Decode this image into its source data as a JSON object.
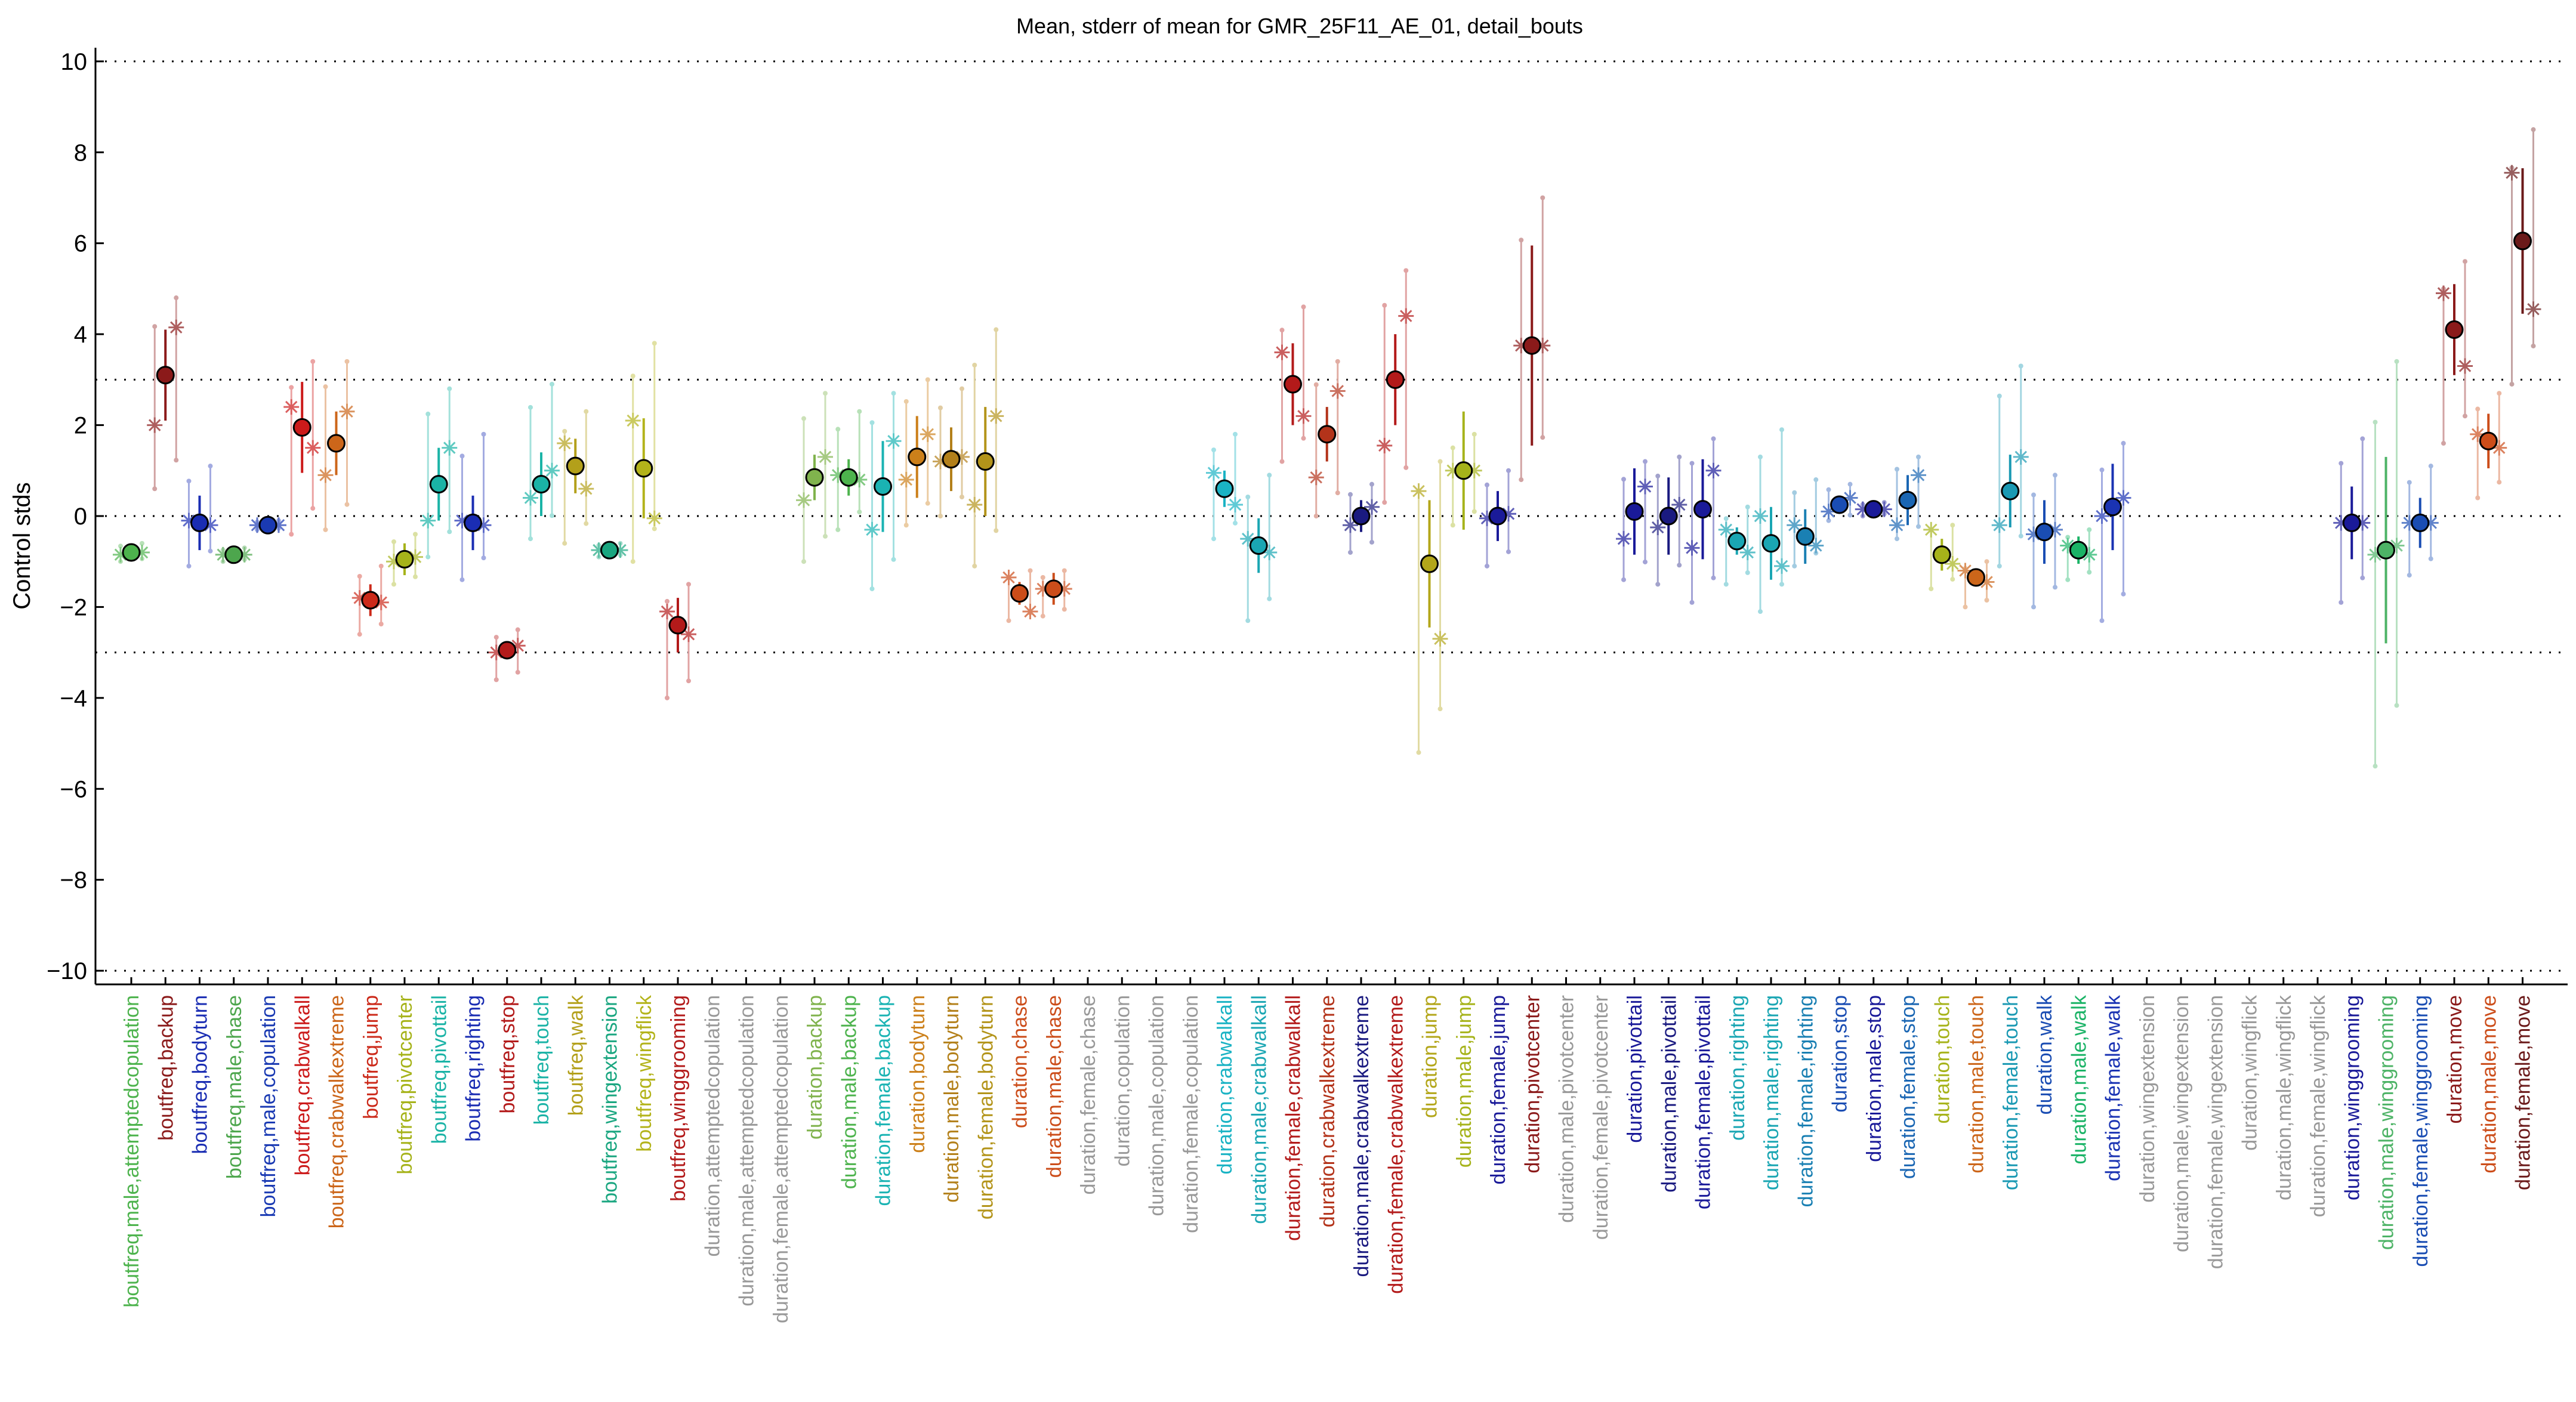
{
  "chart_data": {
    "type": "scatter",
    "title": "Mean, stderr of mean for GMR_25F11_AE_01, detail_bouts",
    "xlabel": "",
    "ylabel": "Control stds",
    "ylim": [
      -10.3,
      10.3
    ],
    "yticks": [
      10,
      8,
      6,
      4,
      2,
      0,
      -2,
      -4,
      -6,
      -8,
      -10
    ],
    "ytick_labels": [
      "10",
      "8",
      "6",
      "4",
      "2",
      "0",
      "−2",
      "−4",
      "−6",
      "−8",
      "−10"
    ],
    "reference_lines": [
      10,
      3,
      0,
      -3,
      -10
    ],
    "grid": false,
    "legend": "none",
    "marker_edge_color": "#000000",
    "categories": [
      {
        "label": "boutfreq,male,attemptedcopulation",
        "color": "#4db34d",
        "mean": -0.8,
        "sem": 0.1,
        "stars": [
          -0.85,
          -0.8
        ],
        "spread": [
          -1.0,
          -0.6
        ]
      },
      {
        "label": "boutfreq,backup",
        "color": "#8b1a1a",
        "mean": 3.1,
        "sem": 1.0,
        "stars": [
          2.0,
          4.15
        ],
        "spread": [
          0.6,
          4.8
        ]
      },
      {
        "label": "boutfreq,bodyturn",
        "color": "#1a2db3",
        "mean": -0.15,
        "sem": 0.6,
        "stars": [
          -0.1,
          -0.2
        ],
        "spread": [
          -1.1,
          1.1
        ]
      },
      {
        "label": "boutfreq,male,chase",
        "color": "#4da64d",
        "mean": -0.85,
        "sem": 0.1,
        "stars": [
          -0.85,
          -0.85
        ],
        "spread": [
          -1.0,
          -0.7
        ]
      },
      {
        "label": "boutfreq,male,copulation",
        "color": "#1a3ab3",
        "mean": -0.2,
        "sem": 0.1,
        "stars": [
          -0.2,
          -0.2
        ],
        "spread": [
          -0.3,
          -0.1
        ]
      },
      {
        "label": "boutfreq,crabwalkall",
        "color": "#cc1a1a",
        "mean": 1.95,
        "sem": 1.0,
        "stars": [
          2.4,
          1.5
        ],
        "spread": [
          -0.4,
          3.4
        ]
      },
      {
        "label": "boutfreq,crabwalkextreme",
        "color": "#cc661a",
        "mean": 1.6,
        "sem": 0.7,
        "stars": [
          0.9,
          2.3
        ],
        "spread": [
          -0.3,
          3.4
        ]
      },
      {
        "label": "boutfreq,jump",
        "color": "#cc2a1a",
        "mean": -1.85,
        "sem": 0.35,
        "stars": [
          -1.8,
          -1.9
        ],
        "spread": [
          -2.6,
          -1.1
        ]
      },
      {
        "label": "boutfreq,pivotcenter",
        "color": "#a6b31a",
        "mean": -0.95,
        "sem": 0.35,
        "stars": [
          -1.0,
          -0.9
        ],
        "spread": [
          -1.5,
          -0.4
        ]
      },
      {
        "label": "boutfreq,pivottail",
        "color": "#1ab3a6",
        "mean": 0.7,
        "sem": 0.8,
        "stars": [
          -0.1,
          1.5
        ],
        "spread": [
          -0.9,
          2.8
        ]
      },
      {
        "label": "boutfreq,righting",
        "color": "#1a2db3",
        "mean": -0.15,
        "sem": 0.6,
        "stars": [
          -0.1,
          -0.2
        ],
        "spread": [
          -1.4,
          1.8
        ]
      },
      {
        "label": "boutfreq,stop",
        "color": "#b31a1a",
        "mean": -2.95,
        "sem": 0.2,
        "stars": [
          -3.0,
          -2.85
        ],
        "spread": [
          -3.6,
          -2.5
        ]
      },
      {
        "label": "boutfreq,touch",
        "color": "#1ab3a6",
        "mean": 0.7,
        "sem": 0.7,
        "stars": [
          0.4,
          1.0
        ],
        "spread": [
          -0.5,
          2.9
        ]
      },
      {
        "label": "boutfreq,walk",
        "color": "#b3a01a",
        "mean": 1.1,
        "sem": 0.6,
        "stars": [
          1.6,
          0.6
        ],
        "spread": [
          -0.6,
          2.3
        ]
      },
      {
        "label": "boutfreq,wingextension",
        "color": "#1aa680",
        "mean": -0.75,
        "sem": 0.1,
        "stars": [
          -0.75,
          -0.75
        ],
        "spread": [
          -0.9,
          -0.6
        ]
      },
      {
        "label": "boutfreq,wingflick",
        "color": "#b3b31a",
        "mean": 1.05,
        "sem": 1.1,
        "stars": [
          2.1,
          -0.05
        ],
        "spread": [
          -1.0,
          3.8
        ]
      },
      {
        "label": "boutfreq,winggrooming",
        "color": "#b31a1a",
        "mean": -2.4,
        "sem": 0.6,
        "stars": [
          -2.1,
          -2.6
        ],
        "spread": [
          -4.0,
          -1.5
        ]
      },
      {
        "label": "duration,attemptedcopulation",
        "color": "#999999"
      },
      {
        "label": "duration,male,attemptedcopulation",
        "color": "#999999"
      },
      {
        "label": "duration,female,attemptedcopulation",
        "color": "#999999"
      },
      {
        "label": "duration,backup",
        "color": "#80b34d",
        "mean": 0.85,
        "sem": 0.5,
        "stars": [
          0.35,
          1.3
        ],
        "spread": [
          -1.0,
          2.7
        ]
      },
      {
        "label": "duration,male,backup",
        "color": "#4db34d",
        "mean": 0.85,
        "sem": 0.4,
        "stars": [
          0.9,
          0.8
        ],
        "spread": [
          -0.3,
          2.3
        ]
      },
      {
        "label": "duration,female,backup",
        "color": "#1ab3b3",
        "mean": 0.65,
        "sem": 1.0,
        "stars": [
          -0.3,
          1.65
        ],
        "spread": [
          -1.6,
          2.7
        ]
      },
      {
        "label": "duration,bodyturn",
        "color": "#cc801a",
        "mean": 1.3,
        "sem": 0.9,
        "stars": [
          0.8,
          1.8
        ],
        "spread": [
          -0.2,
          3.0
        ]
      },
      {
        "label": "duration,male,bodyturn",
        "color": "#b3801a",
        "mean": 1.25,
        "sem": 0.7,
        "stars": [
          1.2,
          1.3
        ],
        "spread": [
          0.0,
          2.8
        ]
      },
      {
        "label": "duration,female,bodyturn",
        "color": "#b3941a",
        "mean": 1.2,
        "sem": 1.2,
        "stars": [
          0.25,
          2.2
        ],
        "spread": [
          -1.1,
          4.1
        ]
      },
      {
        "label": "duration,chase",
        "color": "#cc4d1a",
        "mean": -1.7,
        "sem": 0.25,
        "stars": [
          -1.35,
          -2.1
        ],
        "spread": [
          -2.3,
          -1.2
        ]
      },
      {
        "label": "duration,male,chase",
        "color": "#cc4d1a",
        "mean": -1.6,
        "sem": 0.35,
        "stars": [
          -1.6,
          -1.6
        ],
        "spread": [
          -2.2,
          -1.2
        ]
      },
      {
        "label": "duration,female,chase",
        "color": "#999999"
      },
      {
        "label": "duration,copulation",
        "color": "#999999"
      },
      {
        "label": "duration,male,copulation",
        "color": "#999999"
      },
      {
        "label": "duration,female,copulation",
        "color": "#999999"
      },
      {
        "label": "duration,crabwalkall",
        "color": "#1ab3c4",
        "mean": 0.6,
        "sem": 0.4,
        "stars": [
          0.95,
          0.25
        ],
        "spread": [
          -0.5,
          1.8
        ]
      },
      {
        "label": "duration,male,crabwalkall",
        "color": "#1aa6b3",
        "mean": -0.65,
        "sem": 0.6,
        "stars": [
          -0.5,
          -0.8
        ],
        "spread": [
          -2.3,
          0.9
        ]
      },
      {
        "label": "duration,female,crabwalkall",
        "color": "#b31a1a",
        "mean": 2.9,
        "sem": 0.9,
        "stars": [
          3.6,
          2.2
        ],
        "spread": [
          1.2,
          4.6
        ]
      },
      {
        "label": "duration,crabwalkextreme",
        "color": "#b3331a",
        "mean": 1.8,
        "sem": 0.6,
        "stars": [
          0.85,
          2.75
        ],
        "spread": [
          0.0,
          3.4
        ]
      },
      {
        "label": "duration,male,crabwalkextreme",
        "color": "#1a1a80",
        "mean": 0.0,
        "sem": 0.35,
        "stars": [
          -0.2,
          0.2
        ],
        "spread": [
          -0.8,
          0.7
        ]
      },
      {
        "label": "duration,female,crabwalkextreme",
        "color": "#b31a1a",
        "mean": 3.0,
        "sem": 1.0,
        "stars": [
          1.55,
          4.4
        ],
        "spread": [
          0.3,
          5.4
        ]
      },
      {
        "label": "duration,jump",
        "color": "#b3a61a",
        "mean": -1.05,
        "sem": 1.4,
        "stars": [
          0.55,
          -2.7
        ],
        "spread": [
          -5.2,
          1.2
        ]
      },
      {
        "label": "duration,male,jump",
        "color": "#a6b31a",
        "mean": 1.0,
        "sem": 1.3,
        "stars": [
          1.0,
          1.0
        ],
        "spread": [
          -0.2,
          1.8
        ]
      },
      {
        "label": "duration,female,jump",
        "color": "#1a1a99",
        "mean": 0.0,
        "sem": 0.55,
        "stars": [
          -0.05,
          0.05
        ],
        "spread": [
          -1.1,
          1.0
        ]
      },
      {
        "label": "duration,pivotcenter",
        "color": "#8b1a1a",
        "mean": 3.75,
        "sem": 2.2,
        "stars": [
          3.75,
          3.75
        ],
        "spread": [
          0.8,
          7.0
        ]
      },
      {
        "label": "duration,male,pivotcenter",
        "color": "#999999"
      },
      {
        "label": "duration,female,pivotcenter",
        "color": "#999999"
      },
      {
        "label": "duration,pivottail",
        "color": "#1a1a99",
        "mean": 0.1,
        "sem": 0.95,
        "stars": [
          -0.5,
          0.65
        ],
        "spread": [
          -1.4,
          1.2
        ]
      },
      {
        "label": "duration,male,pivottail",
        "color": "#1a1a80",
        "mean": 0.0,
        "sem": 0.85,
        "stars": [
          -0.25,
          0.25
        ],
        "spread": [
          -1.5,
          1.3
        ]
      },
      {
        "label": "duration,female,pivottail",
        "color": "#1a1a99",
        "mean": 0.15,
        "sem": 1.1,
        "stars": [
          -0.7,
          1.0
        ],
        "spread": [
          -1.9,
          1.7
        ]
      },
      {
        "label": "duration,righting",
        "color": "#1aa6b3",
        "mean": -0.55,
        "sem": 0.3,
        "stars": [
          -0.3,
          -0.8
        ],
        "spread": [
          -1.5,
          0.2
        ]
      },
      {
        "label": "duration,male,righting",
        "color": "#1aa6b3",
        "mean": -0.6,
        "sem": 0.8,
        "stars": [
          0.0,
          -1.1
        ],
        "spread": [
          -2.1,
          1.9
        ]
      },
      {
        "label": "duration,female,righting",
        "color": "#1a80b3",
        "mean": -0.45,
        "sem": 0.6,
        "stars": [
          -0.2,
          -0.65
        ],
        "spread": [
          -1.1,
          0.8
        ]
      },
      {
        "label": "duration,stop",
        "color": "#1a4db3",
        "mean": 0.25,
        "sem": 0.2,
        "stars": [
          0.1,
          0.4
        ],
        "spread": [
          -0.1,
          0.7
        ]
      },
      {
        "label": "duration,male,stop",
        "color": "#1a1a99",
        "mean": 0.15,
        "sem": 0.1,
        "stars": [
          0.15,
          0.15
        ],
        "spread": [
          0.0,
          0.3
        ]
      },
      {
        "label": "duration,female,stop",
        "color": "#1a66b3",
        "mean": 0.35,
        "sem": 0.55,
        "stars": [
          -0.2,
          0.9
        ],
        "spread": [
          -0.5,
          1.3
        ]
      },
      {
        "label": "duration,touch",
        "color": "#a6b31a",
        "mean": -0.85,
        "sem": 0.35,
        "stars": [
          -0.3,
          -1.05
        ],
        "spread": [
          -1.6,
          -0.2
        ]
      },
      {
        "label": "duration,male,touch",
        "color": "#cc661a",
        "mean": -1.35,
        "sem": 0.2,
        "stars": [
          -1.2,
          -1.45
        ],
        "spread": [
          -2.0,
          -1.0
        ]
      },
      {
        "label": "duration,female,touch",
        "color": "#1a99b3",
        "mean": 0.55,
        "sem": 0.8,
        "stars": [
          -0.2,
          1.3
        ],
        "spread": [
          -1.1,
          3.3
        ]
      },
      {
        "label": "duration,walk",
        "color": "#1a4db3",
        "mean": -0.35,
        "sem": 0.7,
        "stars": [
          -0.4,
          -0.3
        ],
        "spread": [
          -2.0,
          0.9
        ]
      },
      {
        "label": "duration,male,walk",
        "color": "#1ab366",
        "mean": -0.75,
        "sem": 0.3,
        "stars": [
          -0.65,
          -0.85
        ],
        "spread": [
          -1.4,
          -0.3
        ]
      },
      {
        "label": "duration,female,walk",
        "color": "#1a33b3",
        "mean": 0.2,
        "sem": 0.95,
        "stars": [
          0.0,
          0.4
        ],
        "spread": [
          -2.3,
          1.6
        ]
      },
      {
        "label": "duration,wingextension",
        "color": "#999999"
      },
      {
        "label": "duration,male,wingextension",
        "color": "#999999"
      },
      {
        "label": "duration,female,wingextension",
        "color": "#999999"
      },
      {
        "label": "duration,wingflick",
        "color": "#999999"
      },
      {
        "label": "duration,male,wingflick",
        "color": "#999999"
      },
      {
        "label": "duration,female,wingflick",
        "color": "#999999"
      },
      {
        "label": "duration,winggrooming",
        "color": "#1a1a99",
        "mean": -0.15,
        "sem": 0.8,
        "stars": [
          -0.15,
          -0.15
        ],
        "spread": [
          -1.9,
          1.7
        ]
      },
      {
        "label": "duration,male,winggrooming",
        "color": "#4db366",
        "mean": -0.75,
        "sem": 2.05,
        "stars": [
          -0.85,
          -0.65
        ],
        "spread": [
          -5.5,
          3.4
        ]
      },
      {
        "label": "duration,female,winggrooming",
        "color": "#1a4db3",
        "mean": -0.15,
        "sem": 0.55,
        "stars": [
          -0.15,
          -0.15
        ],
        "spread": [
          -1.3,
          1.1
        ]
      },
      {
        "label": "duration,move",
        "color": "#8b1a1a",
        "mean": 4.1,
        "sem": 1.0,
        "stars": [
          4.9,
          3.3
        ],
        "spread": [
          1.6,
          5.6
        ]
      },
      {
        "label": "duration,male,move",
        "color": "#cc4d1a",
        "mean": 1.65,
        "sem": 0.6,
        "stars": [
          1.8,
          1.5
        ],
        "spread": [
          0.4,
          2.7
        ]
      },
      {
        "label": "duration,female,move",
        "color": "#6b1a1a",
        "mean": 6.05,
        "sem": 1.6,
        "stars": [
          7.55,
          4.55
        ],
        "spread": [
          2.9,
          8.5
        ]
      }
    ]
  }
}
